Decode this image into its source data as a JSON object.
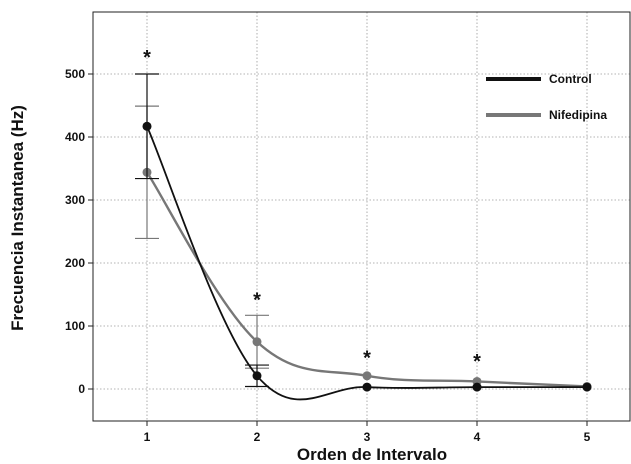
{
  "chart_data": {
    "type": "line",
    "xlabel": "Orden de Intervalo",
    "ylabel": "Frecuencia Instantanea (Hz)",
    "x_ticks": [
      "1",
      "2",
      "3",
      "4",
      "5"
    ],
    "y_ticks": [
      "0",
      "100",
      "200",
      "300",
      "400",
      "500"
    ],
    "xlim": [
      0.5,
      5.4
    ],
    "ylim": [
      -50,
      590
    ],
    "grid": true,
    "legend_position": "top-right",
    "series": [
      {
        "name": "Control",
        "color": "#111111",
        "x": [
          1,
          2,
          3,
          4,
          5
        ],
        "y": [
          417,
          21,
          3,
          3,
          3
        ],
        "error": [
          83,
          17,
          3,
          3,
          2
        ]
      },
      {
        "name": "Nifedipina",
        "color": "#777777",
        "x": [
          1,
          2,
          3,
          4,
          5
        ],
        "y": [
          344,
          75,
          21,
          12,
          4
        ],
        "error": [
          105,
          42,
          3,
          3,
          2
        ]
      }
    ],
    "annotations": [
      {
        "x": 1,
        "y": 535,
        "text": "*"
      },
      {
        "x": 2,
        "y": 150,
        "text": "*"
      },
      {
        "x": 3,
        "y": 58,
        "text": "*"
      },
      {
        "x": 4,
        "y": 52,
        "text": "*"
      }
    ]
  }
}
